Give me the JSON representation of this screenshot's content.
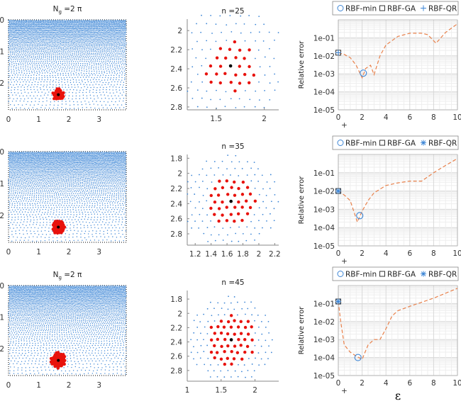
{
  "chart_data": [
    {
      "type": "scatter",
      "panel": "domain",
      "row": 0,
      "title_main": "N",
      "title_sub": "g",
      "title_rest": " =2 π",
      "xlim": [
        0,
        3.9
      ],
      "ylim": [
        0,
        2.85
      ],
      "y_reversed": true,
      "xticks": [
        "0",
        "1",
        "2",
        "3"
      ],
      "yticks": [
        "0",
        "1",
        "2"
      ],
      "stencil_center": [
        1.65,
        2.37
      ],
      "n": 25,
      "colors": {
        "nodes": "#3d86d6",
        "stencil": "#e8120c",
        "center": "#000000"
      }
    },
    {
      "type": "scatter",
      "panel": "stencil",
      "row": 0,
      "title": "n =25",
      "xlim": [
        1.2,
        2.15
      ],
      "ylim": [
        1.88,
        2.83
      ],
      "y_reversed": true,
      "xticks": [
        "1.5",
        "2"
      ],
      "yticks": [
        "2",
        "2.2",
        "2.4",
        "2.6",
        "2.8"
      ],
      "stencil_center": [
        1.65,
        2.37
      ],
      "n": 25
    },
    {
      "type": "line",
      "panel": "error",
      "row": 0,
      "ylabel": "Relative error",
      "ylog": true,
      "xlim": [
        0,
        10
      ],
      "ylim": [
        1e-05,
        1
      ],
      "xticks": [
        "0",
        "2",
        "4",
        "6",
        "8",
        "10"
      ],
      "yticks": [
        "1e-01",
        "1e-02",
        "1e-03",
        "1e-04",
        "1e-05"
      ],
      "below_axis_mark": "+",
      "legend": [
        {
          "label": "RBF-min",
          "marker": "circle"
        },
        {
          "label": "RBF-GA",
          "marker": "square"
        },
        {
          "label": "RBF-QR",
          "marker": "plus"
        }
      ],
      "series": {
        "x": [
          0,
          0.5,
          1,
          1.5,
          2,
          2.3,
          2.7,
          3,
          3.5,
          4,
          5,
          6,
          7,
          7.5,
          8.2,
          9,
          10
        ],
        "y": [
          0.015,
          0.012,
          0.008,
          0.003,
          0.0006,
          0.002,
          0.003,
          0.0009,
          0.01,
          0.04,
          0.12,
          0.18,
          0.18,
          0.15,
          0.05,
          0.2,
          0.6
        ]
      },
      "rbf_min": [
        2.1,
        0.0011
      ],
      "rbf_ga": [
        0,
        0.015
      ],
      "rbf_qr": [
        0,
        0.015
      ]
    },
    {
      "type": "scatter",
      "panel": "domain",
      "row": 1,
      "title_main": "",
      "title_sub": "",
      "title_rest": "",
      "xlim": [
        0,
        3.9
      ],
      "ylim": [
        0,
        2.85
      ],
      "y_reversed": true,
      "xticks": [
        "0",
        "1",
        "2",
        "3"
      ],
      "yticks": [
        "0",
        "1",
        "2"
      ],
      "stencil_center": [
        1.65,
        2.37
      ],
      "n": 35
    },
    {
      "type": "scatter",
      "panel": "stencil",
      "row": 1,
      "title": "n =35",
      "xlim": [
        1.1,
        2.25
      ],
      "ylim": [
        1.75,
        2.95
      ],
      "y_reversed": true,
      "xticks": [
        "1.2",
        "1.4",
        "1.6",
        "1.8",
        "2",
        "2.2"
      ],
      "yticks": [
        "1.8",
        "2",
        "2.2",
        "2.4",
        "2.6",
        "2.8"
      ],
      "stencil_center": [
        1.65,
        2.37
      ],
      "n": 35
    },
    {
      "type": "line",
      "panel": "error",
      "row": 1,
      "ylabel": "Relative error",
      "ylog": true,
      "xlim": [
        0,
        10
      ],
      "ylim": [
        1e-05,
        1
      ],
      "xticks": [
        "0",
        "2",
        "4",
        "6",
        "8",
        "10"
      ],
      "yticks": [
        "1e-01",
        "1e-02",
        "1e-03",
        "1e-04",
        "1e-05"
      ],
      "below_axis_mark": "+",
      "legend": [
        {
          "label": "RBF-min",
          "marker": "circle"
        },
        {
          "label": "RBF-GA",
          "marker": "square"
        },
        {
          "label": "RBF-QR",
          "marker": "asterisk"
        }
      ],
      "series": {
        "x": [
          0,
          0.5,
          1,
          1.6,
          2,
          2.5,
          3,
          4,
          5,
          6,
          7,
          8,
          9,
          10
        ],
        "y": [
          0.01,
          0.006,
          0.003,
          0.0002,
          0.0008,
          0.003,
          0.008,
          0.02,
          0.028,
          0.035,
          0.035,
          0.1,
          0.25,
          0.6
        ]
      },
      "rbf_min": [
        1.8,
        0.00045
      ],
      "rbf_ga": [
        0,
        0.01
      ],
      "rbf_qr": [
        0,
        0.01
      ]
    },
    {
      "type": "scatter",
      "panel": "domain",
      "row": 2,
      "title_main": "N",
      "title_sub": "g",
      "title_rest": " =2 π",
      "xlim": [
        0,
        3.9
      ],
      "ylim": [
        0,
        2.85
      ],
      "y_reversed": true,
      "xticks": [
        "0",
        "1",
        "2",
        "3"
      ],
      "yticks": [
        "0",
        "1",
        "2"
      ],
      "stencil_center": [
        1.65,
        2.37
      ],
      "n": 45
    },
    {
      "type": "scatter",
      "panel": "stencil",
      "row": 2,
      "title": "n =45",
      "xlim": [
        1.0,
        2.35
      ],
      "ylim": [
        1.68,
        2.95
      ],
      "y_reversed": true,
      "xticks": [
        "1",
        "1.5",
        "2"
      ],
      "yticks": [
        "1.8",
        "2",
        "2.2",
        "2.4",
        "2.6",
        "2.8"
      ],
      "stencil_center": [
        1.65,
        2.37
      ],
      "n": 45
    },
    {
      "type": "line",
      "panel": "error",
      "row": 2,
      "ylabel": "Relative error",
      "xlabel": "ε",
      "ylog": true,
      "xlim": [
        0,
        10
      ],
      "ylim": [
        1e-05,
        1
      ],
      "xticks": [
        "0",
        "2",
        "4",
        "6",
        "8",
        "10"
      ],
      "yticks": [
        "1e-01",
        "1e-02",
        "1e-03",
        "1e-04",
        "1e-05"
      ],
      "below_axis_mark": "+",
      "legend": [
        {
          "label": "RBF-min",
          "marker": "circle"
        },
        {
          "label": "RBF-GA",
          "marker": "square"
        },
        {
          "label": "RBF-QR",
          "marker": "asterisk"
        }
      ],
      "series": {
        "x": [
          0,
          0.2,
          0.5,
          1,
          1.5,
          2,
          2.5,
          3,
          3.5,
          4,
          4.5,
          5,
          6,
          8,
          10
        ],
        "y": [
          0.13,
          0.01,
          0.0005,
          0.0002,
          0.00012,
          8e-05,
          0.0005,
          0.001,
          0.001,
          0.004,
          0.02,
          0.04,
          0.07,
          0.2,
          0.7
        ]
      },
      "rbf_min": [
        1.65,
        0.0001
      ],
      "rbf_ga": [
        0,
        0.13
      ],
      "rbf_qr": [
        0,
        0.13
      ]
    }
  ],
  "colors": {
    "curve": "#e8804a",
    "marker": "#3d86d6",
    "grid": "#e3e3e3",
    "axis": "#888888"
  }
}
